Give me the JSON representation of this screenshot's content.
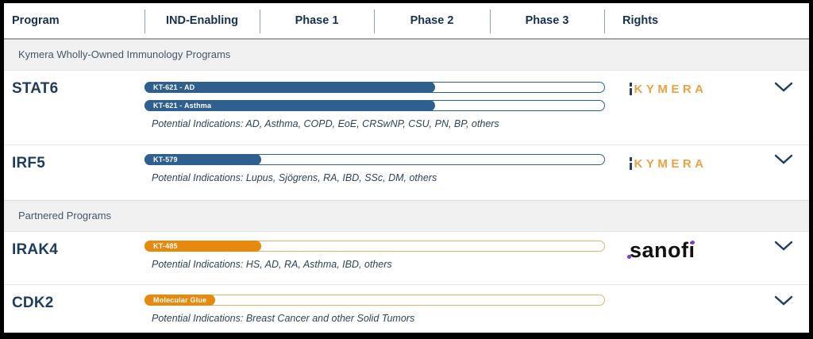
{
  "colors": {
    "navy": "#1d3c5f",
    "header_text": "#16304e",
    "blue_bar": "#2f5f8f",
    "orange_bar": "#e7890c",
    "orange_track": "#dfb575",
    "kymera_orange": "#e9a242",
    "mark_navy": "#2b4058",
    "section_bg": "#f1f1f1",
    "section_text": "#44576a",
    "indications": "#2d4458",
    "sanofi_black": "#111114",
    "sanofi_purple": "#8b35c1"
  },
  "header": {
    "columns": [
      {
        "label": "Program"
      },
      {
        "label": "IND-Enabling"
      },
      {
        "label": "Phase 1"
      },
      {
        "label": "Phase 2"
      },
      {
        "label": "Phase 3"
      },
      {
        "label": "Rights"
      }
    ]
  },
  "logos": {
    "kymera_text": "KYMERA",
    "sanofi_text": "sanofi"
  },
  "sections": [
    {
      "label": "Kymera Wholly-Owned Immunology Programs",
      "programs": [
        {
          "name": "STAT6",
          "rights": "Kymera",
          "bars": [
            {
              "label": "KT-621 - AD",
              "fill_pct": 63,
              "color": "blue"
            },
            {
              "label": "KT-621 - Asthma",
              "fill_pct": 63,
              "color": "blue"
            }
          ],
          "indications": "Potential Indications: AD, Asthma, COPD, EoE, CRSwNP, CSU, PN, BP, others"
        },
        {
          "name": "IRF5",
          "rights": "Kymera",
          "bars": [
            {
              "label": "KT-579",
              "fill_pct": 25,
              "color": "blue"
            }
          ],
          "indications": "Potential Indications: Lupus, Sjögrens, RA, IBD, SSc, DM, others"
        }
      ]
    },
    {
      "label": "Partnered Programs",
      "programs": [
        {
          "name": "IRAK4",
          "rights": "Sanofi",
          "bars": [
            {
              "label": "KT-485",
              "fill_pct": 25,
              "color": "orange"
            }
          ],
          "indications": "Potential Indications: HS, AD, RA, Asthma, IBD, others"
        },
        {
          "name": "CDK2",
          "rights": "",
          "bars": [
            {
              "label": "Molecular Glue",
              "fill_pct": 15,
              "color": "orange"
            }
          ],
          "indications": "Potential Indications: Breast Cancer and other Solid Tumors"
        }
      ]
    }
  ],
  "chart_data": {
    "type": "bar",
    "title": "Kymera drug development pipeline",
    "phase_axis": [
      "IND-Enabling",
      "Phase 1",
      "Phase 2",
      "Phase 3"
    ],
    "series": [
      {
        "program": "STAT6",
        "candidate": "KT-621 - AD",
        "progress_pct_of_phase_axis": 63,
        "stage": "Phase 2",
        "rights": "Kymera",
        "color": "#2f5f8f"
      },
      {
        "program": "STAT6",
        "candidate": "KT-621 - Asthma",
        "progress_pct_of_phase_axis": 63,
        "stage": "Phase 2",
        "rights": "Kymera",
        "color": "#2f5f8f"
      },
      {
        "program": "IRF5",
        "candidate": "KT-579",
        "progress_pct_of_phase_axis": 25,
        "stage": "Phase 1",
        "rights": "Kymera",
        "color": "#2f5f8f"
      },
      {
        "program": "IRAK4",
        "candidate": "KT-485",
        "progress_pct_of_phase_axis": 25,
        "stage": "Phase 1",
        "rights": "Sanofi",
        "color": "#e7890c"
      },
      {
        "program": "CDK2",
        "candidate": "Molecular Glue",
        "progress_pct_of_phase_axis": 15,
        "stage": "IND-Enabling",
        "rights": "",
        "color": "#e7890c"
      }
    ]
  }
}
